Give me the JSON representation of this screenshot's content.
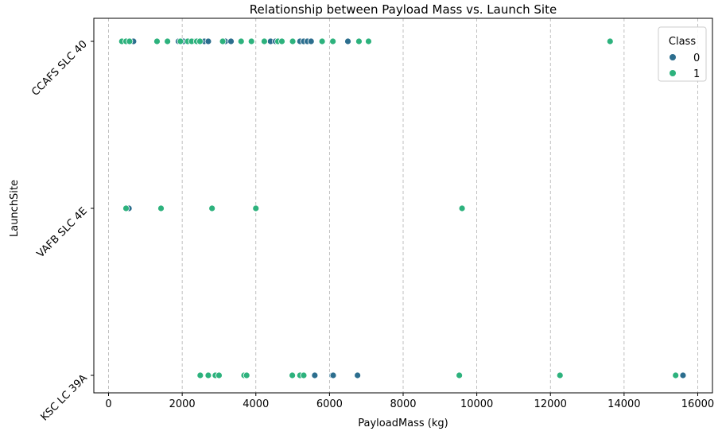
{
  "chart_data": {
    "type": "scatter",
    "title": "Relationship between Payload Mass vs. Launch Site",
    "xlabel": "PayloadMass (kg)",
    "ylabel": "LaunchSite",
    "categories": [
      "CCAFS SLC 40",
      "VAFB SLC 4E",
      "KSC LC 39A"
    ],
    "xlim": [
      -400,
      16400
    ],
    "xticks": [
      0,
      2000,
      4000,
      6000,
      8000,
      10000,
      12000,
      14000,
      16000
    ],
    "x_grid": true,
    "legend": {
      "title": "Class",
      "placement": "top-right",
      "entries": [
        {
          "label": "0",
          "color": "#2c6e8e"
        },
        {
          "label": "1",
          "color": "#2db27d"
        }
      ]
    },
    "series": [
      {
        "name": "0",
        "color": "#2c6e8e",
        "points": [
          {
            "x": 500,
            "y": "CCAFS SLC 40"
          },
          {
            "x": 677,
            "y": "CCAFS SLC 40"
          },
          {
            "x": 1898,
            "y": "CCAFS SLC 40"
          },
          {
            "x": 2034,
            "y": "CCAFS SLC 40"
          },
          {
            "x": 2296,
            "y": "CCAFS SLC 40"
          },
          {
            "x": 2500,
            "y": "CCAFS SLC 40"
          },
          {
            "x": 2600,
            "y": "CCAFS SLC 40"
          },
          {
            "x": 2708,
            "y": "CCAFS SLC 40"
          },
          {
            "x": 3170,
            "y": "CCAFS SLC 40"
          },
          {
            "x": 3325,
            "y": "CCAFS SLC 40"
          },
          {
            "x": 4400,
            "y": "CCAFS SLC 40"
          },
          {
            "x": 4535,
            "y": "CCAFS SLC 40"
          },
          {
            "x": 5200,
            "y": "CCAFS SLC 40"
          },
          {
            "x": 5300,
            "y": "CCAFS SLC 40"
          },
          {
            "x": 5400,
            "y": "CCAFS SLC 40"
          },
          {
            "x": 5500,
            "y": "CCAFS SLC 40"
          },
          {
            "x": 6500,
            "y": "CCAFS SLC 40"
          },
          {
            "x": 553,
            "y": "VAFB SLC 4E"
          },
          {
            "x": 5600,
            "y": "KSC LC 39A"
          },
          {
            "x": 6070,
            "y": "KSC LC 39A"
          },
          {
            "x": 6100,
            "y": "KSC LC 39A"
          },
          {
            "x": 6761,
            "y": "KSC LC 39A"
          },
          {
            "x": 15600,
            "y": "KSC LC 39A"
          }
        ]
      },
      {
        "name": "1",
        "color": "#2db27d",
        "points": [
          {
            "x": 362,
            "y": "CCAFS SLC 40"
          },
          {
            "x": 475,
            "y": "CCAFS SLC 40"
          },
          {
            "x": 570,
            "y": "CCAFS SLC 40"
          },
          {
            "x": 1316,
            "y": "CCAFS SLC 40"
          },
          {
            "x": 1600,
            "y": "CCAFS SLC 40"
          },
          {
            "x": 1952,
            "y": "CCAFS SLC 40"
          },
          {
            "x": 2150,
            "y": "CCAFS SLC 40"
          },
          {
            "x": 2257,
            "y": "CCAFS SLC 40"
          },
          {
            "x": 2395,
            "y": "CCAFS SLC 40"
          },
          {
            "x": 2482,
            "y": "CCAFS SLC 40"
          },
          {
            "x": 3100,
            "y": "CCAFS SLC 40"
          },
          {
            "x": 3600,
            "y": "CCAFS SLC 40"
          },
          {
            "x": 3880,
            "y": "CCAFS SLC 40"
          },
          {
            "x": 4230,
            "y": "CCAFS SLC 40"
          },
          {
            "x": 4600,
            "y": "CCAFS SLC 40"
          },
          {
            "x": 4707,
            "y": "CCAFS SLC 40"
          },
          {
            "x": 5000,
            "y": "CCAFS SLC 40"
          },
          {
            "x": 5800,
            "y": "CCAFS SLC 40"
          },
          {
            "x": 6092,
            "y": "CCAFS SLC 40"
          },
          {
            "x": 6800,
            "y": "CCAFS SLC 40"
          },
          {
            "x": 7060,
            "y": "CCAFS SLC 40"
          },
          {
            "x": 13620,
            "y": "CCAFS SLC 40"
          },
          {
            "x": 475,
            "y": "VAFB SLC 4E"
          },
          {
            "x": 1425,
            "y": "VAFB SLC 4E"
          },
          {
            "x": 2810,
            "y": "VAFB SLC 4E"
          },
          {
            "x": 4000,
            "y": "VAFB SLC 4E"
          },
          {
            "x": 9600,
            "y": "VAFB SLC 4E"
          },
          {
            "x": 2490,
            "y": "KSC LC 39A"
          },
          {
            "x": 2708,
            "y": "KSC LC 39A"
          },
          {
            "x": 2900,
            "y": "KSC LC 39A"
          },
          {
            "x": 3000,
            "y": "KSC LC 39A"
          },
          {
            "x": 3681,
            "y": "KSC LC 39A"
          },
          {
            "x": 3750,
            "y": "KSC LC 39A"
          },
          {
            "x": 4990,
            "y": "KSC LC 39A"
          },
          {
            "x": 5200,
            "y": "KSC LC 39A"
          },
          {
            "x": 5300,
            "y": "KSC LC 39A"
          },
          {
            "x": 9525,
            "y": "KSC LC 39A"
          },
          {
            "x": 12259,
            "y": "KSC LC 39A"
          },
          {
            "x": 15400,
            "y": "KSC LC 39A"
          }
        ]
      }
    ]
  }
}
